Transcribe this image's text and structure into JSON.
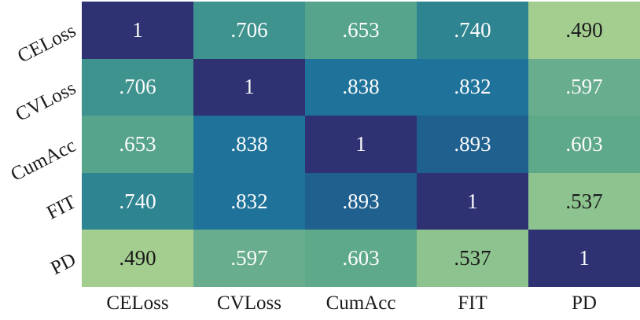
{
  "chart_data": {
    "type": "heatmap",
    "title": "",
    "xlabel": "",
    "ylabel": "",
    "legend": "none",
    "grid": "off",
    "colormap": "crest (light green = low, dark navy = high)",
    "value_range": [
      0.49,
      1.0
    ],
    "row_labels": [
      "CELoss",
      "CVLoss",
      "CumAcc",
      "FIT",
      "PD"
    ],
    "col_labels": [
      "CELoss",
      "CVLoss",
      "CumAcc",
      "FIT",
      "PD"
    ],
    "matrix": [
      [
        1,
        0.706,
        0.653,
        0.74,
        0.49
      ],
      [
        0.706,
        1,
        0.838,
        0.832,
        0.597
      ],
      [
        0.653,
        0.838,
        1,
        0.893,
        0.603
      ],
      [
        0.74,
        0.832,
        0.893,
        1,
        0.537
      ],
      [
        0.49,
        0.597,
        0.603,
        0.537,
        1
      ]
    ],
    "cell_labels": [
      [
        "1",
        ".706",
        ".653",
        ".740",
        ".490"
      ],
      [
        ".706",
        "1",
        ".838",
        ".832",
        ".597"
      ],
      [
        ".653",
        ".838",
        "1",
        ".893",
        ".603"
      ],
      [
        ".740",
        ".832",
        ".893",
        "1",
        ".537"
      ],
      [
        ".490",
        ".597",
        ".603",
        ".537",
        "1"
      ]
    ],
    "cell_colors": [
      [
        "#2e3272",
        "#3e938e",
        "#57a48d",
        "#2e8591",
        "#a4cd90"
      ],
      [
        "#3e938e",
        "#2e3272",
        "#1f729a",
        "#1f739a",
        "#67ad8e"
      ],
      [
        "#57a48d",
        "#1f729a",
        "#2e3272",
        "#20608f",
        "#5fa98b"
      ],
      [
        "#2e8591",
        "#1f739a",
        "#20608f",
        "#2e3272",
        "#8dc38f"
      ],
      [
        "#a4cd90",
        "#67ad8e",
        "#5fa98b",
        "#8dc38f",
        "#2e3272"
      ]
    ],
    "cell_text_tone": [
      [
        "light",
        "light",
        "light",
        "light",
        "dark"
      ],
      [
        "light",
        "light",
        "light",
        "light",
        "light"
      ],
      [
        "light",
        "light",
        "light",
        "light",
        "light"
      ],
      [
        "light",
        "light",
        "light",
        "light",
        "dark"
      ],
      [
        "dark",
        "light",
        "light",
        "dark",
        "light"
      ]
    ],
    "style": {
      "text_light": "#fbfbfb",
      "text_dark": "#1b1b1b",
      "axis_label_color": "#1a1a1a",
      "background": "#ffffff"
    }
  }
}
